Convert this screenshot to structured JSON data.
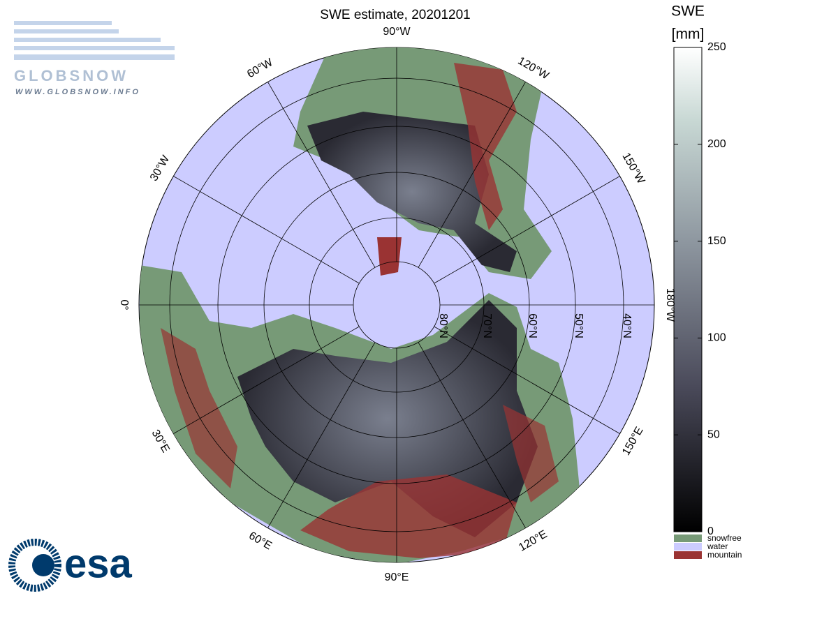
{
  "title": "SWE estimate, 20201201",
  "meridian_labels": [
    "90°W",
    "120°W",
    "150°W",
    "180°W",
    "150°E",
    "120°E",
    "90°E",
    "60°E",
    "30°E",
    "0°",
    "30°W",
    "60°W"
  ],
  "parallel_labels": [
    "80°N",
    "70°N",
    "60°N",
    "50°N",
    "40°N"
  ],
  "colorbar": {
    "title": "SWE",
    "unit": "[mm]",
    "lim": [
      0,
      250
    ],
    "ticks": [
      0,
      50,
      100,
      150,
      200,
      250
    ]
  },
  "legend": [
    {
      "label": "snowfree",
      "color": "#779a77"
    },
    {
      "label": "water",
      "color": "#ccccff"
    },
    {
      "label": "mountain",
      "color": "#9a3333"
    }
  ],
  "logos": {
    "globsnow": "GLOBSNOW",
    "globsnow_url": "WWW.GLOBSNOW.INFO",
    "esa": "esa"
  }
}
